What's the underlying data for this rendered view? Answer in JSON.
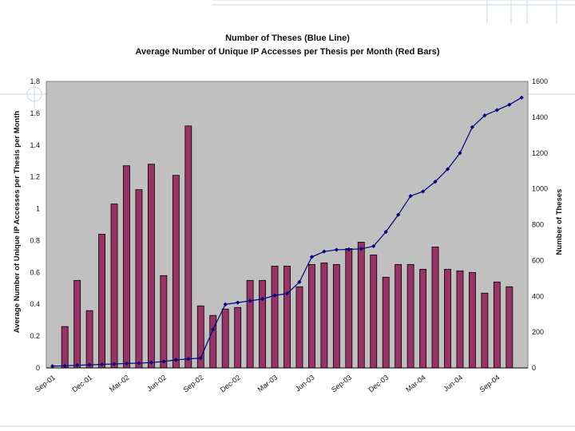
{
  "chart_data": {
    "type": "bar+line",
    "title": "Number of Theses (Blue Line)",
    "subtitle": "Average Number of Unique IP Accesses per Thesis per Month (Red Bars)",
    "ylabel": "Average Number of Unique IP Accesses per Thesis per Month",
    "y2label": "Number of Theses",
    "ylim": [
      0,
      1.8
    ],
    "y2lim": [
      0,
      1600
    ],
    "yticks": [
      "0",
      "0.2",
      "0.4",
      "0.6",
      "0.8",
      "1",
      "1.2",
      "1.4",
      "1.6",
      "1.8"
    ],
    "y2ticks": [
      "0",
      "200",
      "400",
      "600",
      "800",
      "1000",
      "1200",
      "1400",
      "1600"
    ],
    "x_tick_labels": [
      "Sep-01",
      "Dec-01",
      "Mar-02",
      "Jun-02",
      "Sep-02",
      "Dec-02",
      "Mar-03",
      "Jun-03",
      "Sep-03",
      "Dec-03",
      "Mar-04",
      "Jun-04",
      "Sep-04"
    ],
    "x_tick_every": 3,
    "categories": [
      "Sep-01",
      "Oct-01",
      "Nov-01",
      "Dec-01",
      "Jan-02",
      "Feb-02",
      "Mar-02",
      "Apr-02",
      "May-02",
      "Jun-02",
      "Jul-02",
      "Aug-02",
      "Sep-02",
      "Oct-02",
      "Nov-02",
      "Dec-02",
      "Jan-03",
      "Feb-03",
      "Mar-03",
      "Apr-03",
      "May-03",
      "Jun-03",
      "Jul-03",
      "Aug-03",
      "Sep-03",
      "Oct-03",
      "Nov-03",
      "Dec-03",
      "Jan-04",
      "Feb-04",
      "Mar-04",
      "Apr-04",
      "May-04",
      "Jun-04",
      "Jul-04",
      "Aug-04",
      "Sep-04",
      "Oct-04",
      "Nov-04"
    ],
    "series": [
      {
        "name": "Average Number of Unique IP Accesses per Thesis per Month",
        "kind": "bar",
        "axis": "left",
        "color": "#993366",
        "values": [
          null,
          0.26,
          0.55,
          0.36,
          0.84,
          1.03,
          1.27,
          1.12,
          1.28,
          0.58,
          1.21,
          1.52,
          0.39,
          0.33,
          0.37,
          0.38,
          0.55,
          0.55,
          0.64,
          0.64,
          0.51,
          0.65,
          0.66,
          0.65,
          0.75,
          0.79,
          0.71,
          0.57,
          0.65,
          0.65,
          0.62,
          0.76,
          0.62,
          0.61,
          0.6,
          0.47,
          0.54,
          0.51,
          null
        ]
      },
      {
        "name": "Number of Theses",
        "kind": "line",
        "axis": "right",
        "color": "#000080",
        "values": [
          10,
          12,
          15,
          17,
          20,
          22,
          25,
          27,
          30,
          36,
          45,
          50,
          55,
          215,
          355,
          365,
          375,
          385,
          405,
          415,
          480,
          620,
          650,
          660,
          662,
          665,
          680,
          760,
          855,
          960,
          985,
          1040,
          1110,
          1200,
          1345,
          1410,
          1440,
          1470,
          1510
        ]
      }
    ],
    "plot_background": "#c0c0c0"
  }
}
